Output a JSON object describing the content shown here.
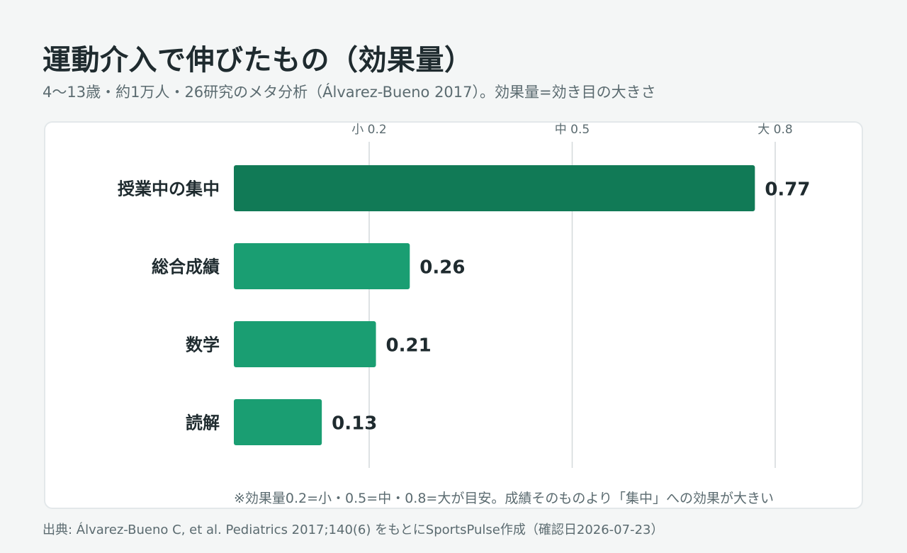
{
  "header": {
    "title": "運動介入で伸びたもの（効果量）",
    "subtitle": "4〜13歳・約1万人・26研究のメタ分析（Álvarez-Bueno 2017）。効果量=効き目の大きさ"
  },
  "chart_data": {
    "type": "bar",
    "orientation": "horizontal",
    "categories": [
      "授業中の集中",
      "総合成績",
      "数学",
      "読解"
    ],
    "values": [
      0.77,
      0.26,
      0.21,
      0.13
    ],
    "value_labels": [
      "0.77",
      "0.26",
      "0.21",
      "0.13"
    ],
    "xlim": [
      0,
      1.0
    ],
    "reference_lines": [
      {
        "value": 0.2,
        "label": "小 0.2"
      },
      {
        "value": 0.5,
        "label": "中 0.5"
      },
      {
        "value": 0.8,
        "label": "大 0.8"
      }
    ],
    "colors": {
      "highlight": "#117a56",
      "default": "#1a9e72",
      "ref_line": "#d4d9db"
    },
    "highlight_index": 0,
    "grid": false
  },
  "notes": {
    "footnote": "※効果量0.2=小・0.5=中・0.8=大が目安。成績そのものより「集中」への効果が大きい",
    "source": "出典: Álvarez-Bueno C, et al. Pediatrics 2017;140(6) をもとにSportsPulse作成（確認日2026-07-23）"
  }
}
